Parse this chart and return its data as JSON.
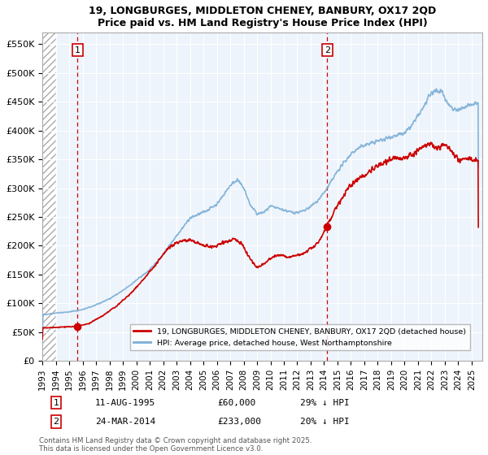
{
  "title_line1": "19, LONGBURGES, MIDDLETON CHENEY, BANBURY, OX17 2QD",
  "title_line2": "Price paid vs. HM Land Registry's House Price Index (HPI)",
  "ylabel_ticks": [
    "£0",
    "£50K",
    "£100K",
    "£150K",
    "£200K",
    "£250K",
    "£300K",
    "£350K",
    "£400K",
    "£450K",
    "£500K",
    "£550K"
  ],
  "ytick_values": [
    0,
    50000,
    100000,
    150000,
    200000,
    250000,
    300000,
    350000,
    400000,
    450000,
    500000,
    550000
  ],
  "ylim": [
    0,
    570000
  ],
  "xlim_start": 1993.0,
  "xlim_end": 2025.8,
  "xticks": [
    1993,
    1994,
    1995,
    1996,
    1997,
    1998,
    1999,
    2000,
    2001,
    2002,
    2003,
    2004,
    2005,
    2006,
    2007,
    2008,
    2009,
    2010,
    2011,
    2012,
    2013,
    2014,
    2015,
    2016,
    2017,
    2018,
    2019,
    2020,
    2021,
    2022,
    2023,
    2024,
    2025
  ],
  "sale1_x": 1995.614,
  "sale1_y": 60000,
  "sale2_x": 2014.23,
  "sale2_y": 233000,
  "legend_entry1": "19, LONGBURGES, MIDDLETON CHENEY, BANBURY, OX17 2QD (detached house)",
  "legend_entry2": "HPI: Average price, detached house, West Northamptonshire",
  "sale1_label": "1",
  "sale1_date": "11-AUG-1995",
  "sale1_price": "£60,000",
  "sale1_hpi": "29% ↓ HPI",
  "sale2_label": "2",
  "sale2_date": "24-MAR-2014",
  "sale2_price": "£233,000",
  "sale2_hpi": "20% ↓ HPI",
  "footnote": "Contains HM Land Registry data © Crown copyright and database right 2025.\nThis data is licensed under the Open Government Licence v3.0.",
  "line_color_red": "#cc0000",
  "line_color_blue": "#7aaed6",
  "grid_color": "#cccccc",
  "hpi_keypoints": [
    [
      1993.0,
      80000
    ],
    [
      1994.0,
      83000
    ],
    [
      1995.0,
      85000
    ],
    [
      1996.0,
      89000
    ],
    [
      1997.0,
      97000
    ],
    [
      1998.0,
      108000
    ],
    [
      1999.0,
      122000
    ],
    [
      2000.0,
      140000
    ],
    [
      2001.0,
      158000
    ],
    [
      2002.0,
      185000
    ],
    [
      2003.0,
      218000
    ],
    [
      2004.0,
      248000
    ],
    [
      2005.0,
      258000
    ],
    [
      2006.0,
      272000
    ],
    [
      2007.0,
      305000
    ],
    [
      2007.5,
      315000
    ],
    [
      2008.0,
      300000
    ],
    [
      2008.5,
      270000
    ],
    [
      2009.0,
      255000
    ],
    [
      2009.5,
      258000
    ],
    [
      2010.0,
      268000
    ],
    [
      2010.5,
      265000
    ],
    [
      2011.0,
      262000
    ],
    [
      2011.5,
      258000
    ],
    [
      2012.0,
      258000
    ],
    [
      2012.5,
      260000
    ],
    [
      2013.0,
      268000
    ],
    [
      2013.5,
      278000
    ],
    [
      2014.0,
      292000
    ],
    [
      2014.5,
      310000
    ],
    [
      2015.0,
      330000
    ],
    [
      2015.5,
      345000
    ],
    [
      2016.0,
      360000
    ],
    [
      2016.5,
      368000
    ],
    [
      2017.0,
      375000
    ],
    [
      2017.5,
      378000
    ],
    [
      2018.0,
      382000
    ],
    [
      2018.5,
      385000
    ],
    [
      2019.0,
      390000
    ],
    [
      2019.5,
      392000
    ],
    [
      2020.0,
      395000
    ],
    [
      2020.5,
      408000
    ],
    [
      2021.0,
      425000
    ],
    [
      2021.5,
      445000
    ],
    [
      2022.0,
      465000
    ],
    [
      2022.5,
      470000
    ],
    [
      2022.8,
      468000
    ],
    [
      2023.0,
      455000
    ],
    [
      2023.5,
      440000
    ],
    [
      2024.0,
      435000
    ],
    [
      2024.5,
      440000
    ],
    [
      2025.0,
      445000
    ],
    [
      2025.5,
      448000
    ]
  ],
  "red_keypoints": [
    [
      1993.0,
      57000
    ],
    [
      1994.0,
      58000
    ],
    [
      1995.0,
      59000
    ],
    [
      1995.614,
      60000
    ],
    [
      1996.0,
      62000
    ],
    [
      1996.5,
      65000
    ],
    [
      1997.0,
      72000
    ],
    [
      1997.5,
      78000
    ],
    [
      1998.0,
      87000
    ],
    [
      1998.5,
      95000
    ],
    [
      1999.0,
      105000
    ],
    [
      1999.5,
      115000
    ],
    [
      2000.0,
      128000
    ],
    [
      2000.5,
      140000
    ],
    [
      2001.0,
      155000
    ],
    [
      2001.5,
      168000
    ],
    [
      2002.0,
      185000
    ],
    [
      2002.5,
      198000
    ],
    [
      2003.0,
      205000
    ],
    [
      2003.5,
      208000
    ],
    [
      2004.0,
      210000
    ],
    [
      2004.5,
      205000
    ],
    [
      2005.0,
      200000
    ],
    [
      2005.5,
      198000
    ],
    [
      2006.0,
      200000
    ],
    [
      2006.5,
      205000
    ],
    [
      2007.0,
      210000
    ],
    [
      2007.3,
      212000
    ],
    [
      2007.8,
      205000
    ],
    [
      2008.3,
      185000
    ],
    [
      2008.7,
      170000
    ],
    [
      2009.0,
      162000
    ],
    [
      2009.3,
      165000
    ],
    [
      2009.7,
      172000
    ],
    [
      2010.0,
      178000
    ],
    [
      2010.3,
      182000
    ],
    [
      2010.7,
      183000
    ],
    [
      2011.0,
      182000
    ],
    [
      2011.3,
      180000
    ],
    [
      2011.7,
      182000
    ],
    [
      2012.0,
      183000
    ],
    [
      2012.3,
      185000
    ],
    [
      2012.7,
      190000
    ],
    [
      2013.0,
      195000
    ],
    [
      2013.3,
      200000
    ],
    [
      2013.7,
      210000
    ],
    [
      2014.0,
      225000
    ],
    [
      2014.23,
      233000
    ],
    [
      2014.5,
      248000
    ],
    [
      2015.0,
      270000
    ],
    [
      2015.5,
      290000
    ],
    [
      2016.0,
      305000
    ],
    [
      2016.5,
      315000
    ],
    [
      2017.0,
      322000
    ],
    [
      2017.5,
      330000
    ],
    [
      2018.0,
      338000
    ],
    [
      2018.5,
      345000
    ],
    [
      2019.0,
      350000
    ],
    [
      2019.5,
      352000
    ],
    [
      2020.0,
      352000
    ],
    [
      2020.5,
      358000
    ],
    [
      2021.0,
      365000
    ],
    [
      2021.5,
      372000
    ],
    [
      2022.0,
      378000
    ],
    [
      2022.3,
      368000
    ],
    [
      2022.7,
      372000
    ],
    [
      2023.0,
      375000
    ],
    [
      2023.3,
      370000
    ],
    [
      2023.7,
      358000
    ],
    [
      2024.0,
      350000
    ],
    [
      2024.3,
      348000
    ],
    [
      2024.7,
      352000
    ],
    [
      2025.0,
      350000
    ],
    [
      2025.5,
      348000
    ]
  ]
}
